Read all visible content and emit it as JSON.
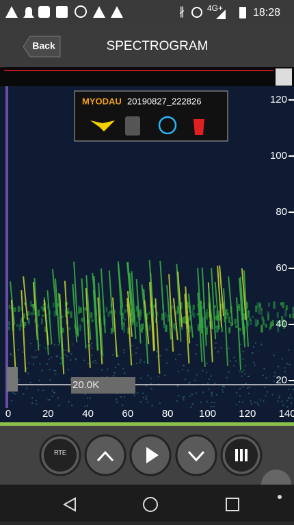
{
  "status_bar": {
    "network": "4G+",
    "time": "18:28"
  },
  "header": {
    "back": "Back",
    "title": "SPECTROGRAM"
  },
  "info": {
    "species": "MYODAU",
    "file": "20190827_222826"
  },
  "spectrogram": {
    "y_labels": [
      120,
      100,
      80,
      60,
      40,
      20
    ],
    "x_labels": [
      0,
      20,
      40,
      60,
      80,
      100,
      120,
      140
    ],
    "marker": "20.0K"
  },
  "controls": {
    "rte": "RTE"
  }
}
